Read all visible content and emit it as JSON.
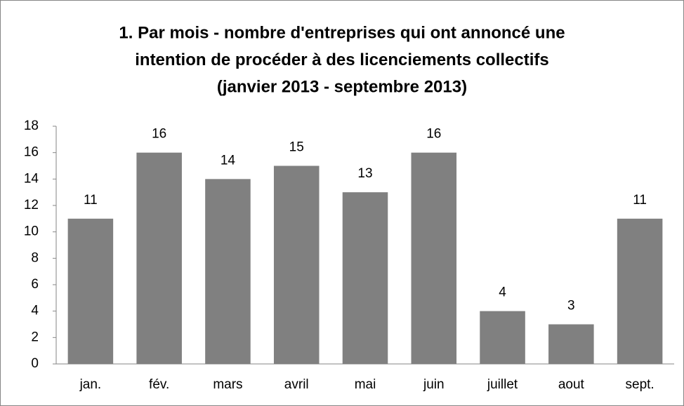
{
  "chart_data": {
    "type": "bar",
    "title": [
      "1. Par mois - nombre d'entreprises qui ont annoncé une",
      "intention de procéder à des licenciements collectifs",
      "(janvier 2013 - septembre 2013)"
    ],
    "categories": [
      "jan.",
      "fév.",
      "mars",
      "avril",
      "mai",
      "juin",
      "juillet",
      "aout",
      "sept."
    ],
    "values": [
      11,
      16,
      14,
      15,
      13,
      16,
      4,
      3,
      11
    ],
    "color": "#808080",
    "ylim": [
      0,
      18
    ],
    "yticks": [
      0,
      2,
      4,
      6,
      8,
      10,
      12,
      14,
      16,
      18
    ],
    "grid": false
  }
}
